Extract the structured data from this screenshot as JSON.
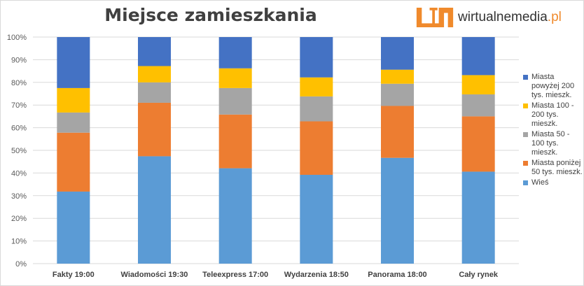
{
  "chart_data": {
    "type": "bar",
    "stacked": true,
    "title": "Miejsce zamieszkania",
    "xlabel": "",
    "ylabel": "",
    "ylim": [
      0,
      100
    ],
    "yticks": [
      "0%",
      "10%",
      "20%",
      "30%",
      "40%",
      "50%",
      "60%",
      "70%",
      "80%",
      "90%",
      "100%"
    ],
    "grid": true,
    "legend_position": "right",
    "categories": [
      "Fakty 19:00",
      "Wiadomości 19:30",
      "Teleexpress 17:00",
      "Wydarzenia 18:50",
      "Panorama 18:00",
      "Cały rynek"
    ],
    "series": [
      {
        "name": "Wieś",
        "color": "#5b9bd5",
        "values": [
          31.8,
          47.4,
          42.1,
          39.2,
          46.7,
          40.6
        ]
      },
      {
        "name": "Miasta poniżej 50 tys. mieszk.",
        "color": "#ed7d31",
        "values": [
          26.0,
          23.6,
          23.7,
          23.6,
          22.9,
          24.4
        ]
      },
      {
        "name": "Miasta 50 - 100 tys. mieszk.",
        "color": "#a5a5a5",
        "values": [
          8.9,
          9.0,
          11.7,
          11.0,
          9.8,
          9.7
        ]
      },
      {
        "name": "Miasta 100 - 200 tys. mieszk.",
        "color": "#ffc000",
        "values": [
          10.8,
          7.2,
          8.7,
          8.4,
          6.2,
          8.5
        ]
      },
      {
        "name": "Miasta powyżej 200 tys. mieszk.",
        "color": "#4472c4",
        "values": [
          22.5,
          12.8,
          13.8,
          17.8,
          14.4,
          16.8
        ]
      }
    ]
  },
  "logo": {
    "text": "wirtualnemedia",
    "suffix": ".pl",
    "color": "#f08a2c"
  }
}
